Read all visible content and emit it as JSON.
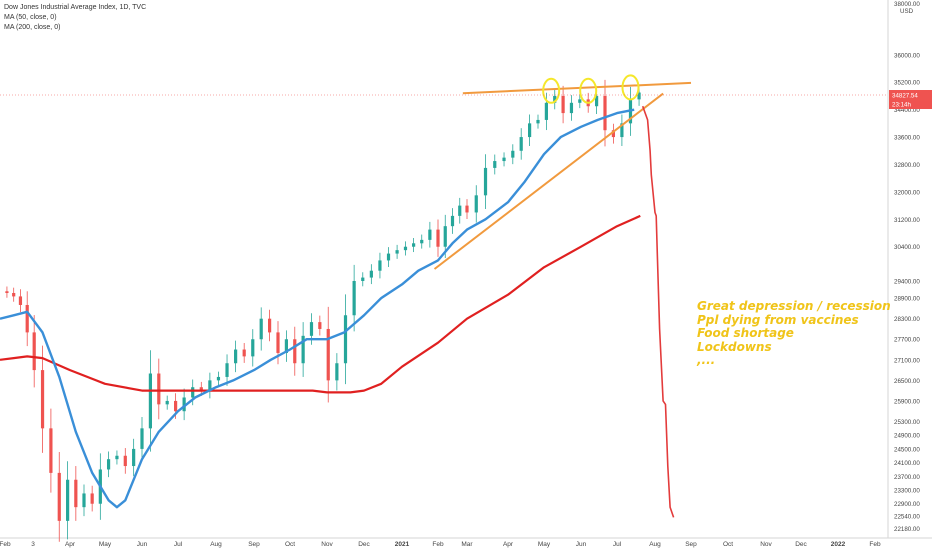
{
  "legend": {
    "symbol": "Dow Jones Industrial Average Index, 1D, TVC",
    "ma50": "MA (50, close, 0)",
    "ma200": "MA (200, close, 0)"
  },
  "annotations": {
    "lines": [
      "Great depression / recession",
      "Ppl dying from vaccines",
      "Food shortage",
      "Lockdowns",
      ",..."
    ],
    "color": "#f0c419"
  },
  "price_labels": {
    "last": "34827.54",
    "change": "23:14h"
  },
  "chart_data": {
    "type": "line",
    "title": "Dow Jones Industrial Average Index, 1D, TVC",
    "ylabel": "USD",
    "ylim": [
      21900,
      37600
    ],
    "y_ticks": [
      36000,
      35200,
      34400,
      33600,
      32800,
      32000,
      31200,
      30400,
      29400,
      28900,
      28300,
      27700,
      27100,
      26500,
      25900,
      25300,
      24900,
      24500,
      24100,
      23700,
      23300,
      22900,
      22540,
      22180
    ],
    "y_tick_labels": [
      "36000.00",
      "35200.00",
      "34400.00",
      "33600.00",
      "32800.00",
      "32000.00",
      "31200.00",
      "30400.00",
      "29400.00",
      "28900.00",
      "28300.00",
      "27700.00",
      "27100.00",
      "26500.00",
      "25900.00",
      "25300.00",
      "24900.00",
      "24500.00",
      "24100.00",
      "23700.00",
      "23300.00",
      "22900.00",
      "22540.00",
      "22180.00"
    ],
    "y_top_label": "38000.00",
    "x_ticks": [
      "Feb",
      "3",
      "Apr",
      "May",
      "Jun",
      "Jul",
      "Aug",
      "Sep",
      "Oct",
      "Nov",
      "Dec",
      "2021",
      "Feb",
      "Mar",
      "Apr",
      "May",
      "Jun",
      "Jul",
      "Aug",
      "Sep",
      "Oct",
      "Nov",
      "Dec",
      "2022",
      "Feb"
    ],
    "x_tick_dates": [
      "2020-02-01",
      "2020-03-01",
      "2020-04-01",
      "2020-05-01",
      "2020-06-01",
      "2020-07-01",
      "2020-08-01",
      "2020-09-01",
      "2020-10-01",
      "2020-11-01",
      "2020-12-01",
      "2021-01-01",
      "2021-02-01",
      "2021-03-01",
      "2021-04-01",
      "2021-05-01",
      "2021-06-01",
      "2021-07-01",
      "2021-08-01",
      "2021-09-01",
      "2021-10-01",
      "2021-11-01",
      "2021-12-01",
      "2022-01-01",
      "2022-02-01"
    ],
    "series": [
      {
        "name": "Dow Jones Industrial Average Index, 1D, TVC",
        "role": "price",
        "color": "#26a69a",
        "down_color": "#ef5350",
        "x": [
          "2020-01-27",
          "2020-02-03",
          "2020-02-10",
          "2020-02-17",
          "2020-02-24",
          "2020-03-02",
          "2020-03-09",
          "2020-03-16",
          "2020-03-23",
          "2020-03-30",
          "2020-04-06",
          "2020-04-13",
          "2020-04-20",
          "2020-04-27",
          "2020-05-04",
          "2020-05-11",
          "2020-05-18",
          "2020-05-25",
          "2020-06-01",
          "2020-06-08",
          "2020-06-15",
          "2020-06-22",
          "2020-06-29",
          "2020-07-06",
          "2020-07-13",
          "2020-07-20",
          "2020-07-27",
          "2020-08-03",
          "2020-08-10",
          "2020-08-17",
          "2020-08-24",
          "2020-08-31",
          "2020-09-07",
          "2020-09-14",
          "2020-09-21",
          "2020-09-28",
          "2020-10-05",
          "2020-10-12",
          "2020-10-19",
          "2020-10-26",
          "2020-11-02",
          "2020-11-09",
          "2020-11-16",
          "2020-11-23",
          "2020-11-30",
          "2020-12-07",
          "2020-12-14",
          "2020-12-21",
          "2020-12-28",
          "2021-01-04",
          "2021-01-11",
          "2021-01-18",
          "2021-01-25",
          "2021-02-01",
          "2021-02-08",
          "2021-02-15",
          "2021-02-22",
          "2021-03-01",
          "2021-03-08",
          "2021-03-15",
          "2021-03-22",
          "2021-03-29",
          "2021-04-05",
          "2021-04-12",
          "2021-04-19",
          "2021-04-26",
          "2021-05-03",
          "2021-05-10",
          "2021-05-17",
          "2021-05-24",
          "2021-05-31",
          "2021-06-07",
          "2021-06-14",
          "2021-06-21",
          "2021-06-28",
          "2021-07-05",
          "2021-07-12",
          "2021-07-19"
        ],
        "y": [
          29100,
          29050,
          28950,
          28700,
          27900,
          26800,
          25100,
          23800,
          22400,
          23600,
          22800,
          23200,
          22900,
          23900,
          24200,
          24300,
          24000,
          24500,
          25100,
          26700,
          25800,
          25900,
          25600,
          26000,
          26300,
          26200,
          26500,
          26600,
          27000,
          27400,
          27200,
          27700,
          28300,
          27900,
          27300,
          27700,
          27000,
          27800,
          28200,
          28000,
          26500,
          27000,
          28400,
          29400,
          29500,
          29700,
          30000,
          30200,
          30300,
          30400,
          30500,
          30600,
          30900,
          30400,
          31000,
          31300,
          31600,
          31400,
          31900,
          32700,
          32900,
          33000,
          33200,
          33600,
          34000,
          34100,
          34600,
          34800,
          34300,
          34600,
          34700,
          34500,
          34800,
          33800,
          33600,
          34000,
          34700,
          34900
        ]
      },
      {
        "name": "MA (50, close, 0)",
        "color": "#3a8fd8",
        "x": [
          "2020-01-27",
          "2020-02-10",
          "2020-02-24",
          "2020-03-09",
          "2020-03-23",
          "2020-04-06",
          "2020-04-20",
          "2020-05-04",
          "2020-05-11",
          "2020-05-18",
          "2020-06-01",
          "2020-06-15",
          "2020-07-01",
          "2020-07-15",
          "2020-08-01",
          "2020-08-15",
          "2020-09-01",
          "2020-09-15",
          "2020-10-01",
          "2020-10-15",
          "2020-11-01",
          "2020-11-15",
          "2020-12-01",
          "2020-12-15",
          "2021-01-01",
          "2021-01-15",
          "2021-02-01",
          "2021-02-15",
          "2021-03-01",
          "2021-03-15",
          "2021-04-01",
          "2021-04-15",
          "2021-05-01",
          "2021-05-15",
          "2021-06-01",
          "2021-06-15",
          "2021-07-01",
          "2021-07-15"
        ],
        "y": [
          28300,
          28400,
          28500,
          27900,
          26600,
          25000,
          23800,
          23000,
          22800,
          23000,
          24200,
          25000,
          25600,
          26000,
          26300,
          26500,
          26800,
          27100,
          27400,
          27700,
          27700,
          27900,
          28400,
          28900,
          29300,
          29700,
          30000,
          30500,
          30900,
          31200,
          31700,
          32300,
          33100,
          33600,
          33900,
          34100,
          34300,
          34400
        ]
      },
      {
        "name": "MA (200, close, 0)",
        "color": "#e02020",
        "x": [
          "2020-01-27",
          "2020-02-10",
          "2020-02-24",
          "2020-03-09",
          "2020-04-01",
          "2020-05-01",
          "2020-06-01",
          "2020-07-01",
          "2020-08-01",
          "2020-09-01",
          "2020-10-01",
          "2020-10-20",
          "2020-11-01",
          "2020-11-20",
          "2020-12-01",
          "2020-12-15",
          "2021-01-01",
          "2021-02-01",
          "2021-03-01",
          "2021-04-01",
          "2021-05-01",
          "2021-06-01",
          "2021-07-01",
          "2021-07-20"
        ],
        "y": [
          27100,
          27150,
          27200,
          27150,
          26800,
          26400,
          26200,
          26200,
          26200,
          26200,
          26200,
          26200,
          26150,
          26150,
          26200,
          26400,
          26900,
          27600,
          28300,
          29000,
          29800,
          30400,
          31000,
          31300
        ]
      }
    ],
    "projection": {
      "color": "#e33b3b",
      "x": [
        "2021-07-22",
        "2021-07-26",
        "2021-07-28",
        "2021-07-29",
        "2021-08-01",
        "2021-08-02",
        "2021-08-03",
        "2021-08-05",
        "2021-08-08",
        "2021-08-10",
        "2021-08-12",
        "2021-08-14",
        "2021-08-17"
      ],
      "y": [
        34500,
        34100,
        33200,
        32500,
        31400,
        31300,
        30200,
        28000,
        25900,
        25800,
        24000,
        22800,
        22500
      ]
    },
    "trendlines": [
      {
        "name": "resistance",
        "color": "#f19a3e",
        "x": [
          "2021-02-25",
          "2021-09-01"
        ],
        "y": [
          34880,
          35180
        ]
      },
      {
        "name": "support",
        "color": "#f19a3e",
        "x": [
          "2021-01-29",
          "2021-08-08"
        ],
        "y": [
          29750,
          34870
        ]
      }
    ],
    "highlights": [
      {
        "name": "top-1",
        "color": "#f5e72b",
        "x": "2021-05-07",
        "y": 34950
      },
      {
        "name": "top-2",
        "color": "#f5e72b",
        "x": "2021-06-07",
        "y": 34950
      },
      {
        "name": "top-3",
        "color": "#f5e72b",
        "x": "2021-07-12",
        "y": 35050
      }
    ],
    "current_price": 34827.54,
    "grid": false,
    "legend_position": "top-left"
  }
}
